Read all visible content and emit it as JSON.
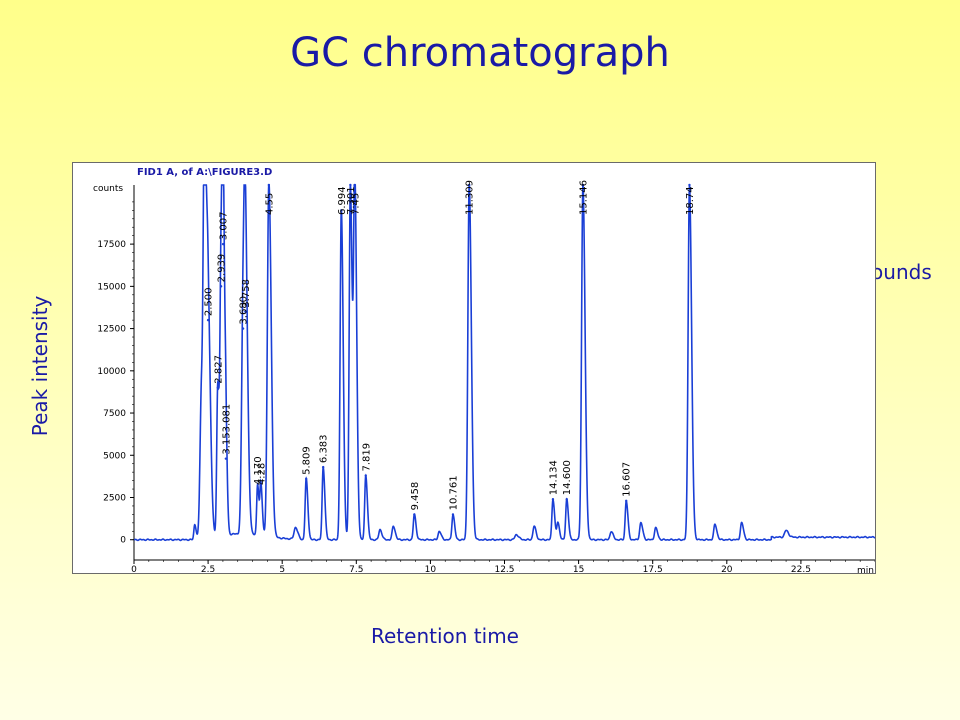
{
  "slide": {
    "title": "GC chromatograph",
    "y_axis_caption": "Peak intensity",
    "x_axis_caption": "Retention time",
    "annotation": "Separated compounds",
    "text_color": "#1a1aa6"
  },
  "chart_data": {
    "type": "line",
    "title": "FID1 A, of A:\\FIGURE3.D",
    "ylabel": "counts",
    "xunit": "min",
    "xlim": [
      0,
      25
    ],
    "ylim": [
      -1200,
      21000
    ],
    "xticks": [
      "0",
      "2.5",
      "5",
      "7.5",
      "10",
      "12.5",
      "15",
      "17.5",
      "20",
      "22.5"
    ],
    "yticks": [
      "0",
      "2500",
      "5000",
      "7500",
      "10000",
      "12500",
      "15000",
      "17500"
    ],
    "line_color": "#1a3fd6",
    "baseline": 0,
    "peaks": [
      {
        "rt": 2.05,
        "height": 900,
        "width": 0.03,
        "label": ""
      },
      {
        "rt": 2.28,
        "height": 9000,
        "width": 0.05,
        "label": ""
      },
      {
        "rt": 2.38,
        "height": 21000,
        "width": 0.04,
        "label": ""
      },
      {
        "rt": 2.5,
        "height": 13000,
        "width": 0.05,
        "label": "2.500"
      },
      {
        "rt": 2.827,
        "height": 9000,
        "width": 0.035,
        "label": "2.827"
      },
      {
        "rt": 2.939,
        "height": 15000,
        "width": 0.035,
        "label": "2.939"
      },
      {
        "rt": 3.007,
        "height": 17500,
        "width": 0.035,
        "label": "3.007"
      },
      {
        "rt": 3.1,
        "height": 4800,
        "width": 0.03,
        "label": "3.153.081"
      },
      {
        "rt": 3.68,
        "height": 12500,
        "width": 0.05,
        "label": "3.680"
      },
      {
        "rt": 3.758,
        "height": 13500,
        "width": 0.05,
        "label": "3.758"
      },
      {
        "rt": 4.17,
        "height": 3000,
        "width": 0.03,
        "label": "4.170"
      },
      {
        "rt": 4.28,
        "height": 3000,
        "width": 0.03,
        "label": "4.28"
      },
      {
        "rt": 4.55,
        "height": 21000,
        "width": 0.05,
        "label": "4.55"
      },
      {
        "rt": 5.45,
        "height": 700,
        "width": 0.05,
        "label": ""
      },
      {
        "rt": 5.809,
        "height": 3600,
        "width": 0.035,
        "label": "5.809"
      },
      {
        "rt": 6.383,
        "height": 4300,
        "width": 0.035,
        "label": "6.383"
      },
      {
        "rt": 6.994,
        "height": 19500,
        "width": 0.04,
        "label": "6.994"
      },
      {
        "rt": 7.3,
        "height": 21000,
        "width": 0.04,
        "label": "7.301"
      },
      {
        "rt": 7.45,
        "height": 21000,
        "width": 0.04,
        "label": "7.45"
      },
      {
        "rt": 7.819,
        "height": 3800,
        "width": 0.035,
        "label": "7.819"
      },
      {
        "rt": 8.3,
        "height": 600,
        "width": 0.04,
        "label": ""
      },
      {
        "rt": 8.75,
        "height": 800,
        "width": 0.04,
        "label": ""
      },
      {
        "rt": 9.458,
        "height": 1500,
        "width": 0.035,
        "label": "9.458"
      },
      {
        "rt": 10.3,
        "height": 500,
        "width": 0.04,
        "label": ""
      },
      {
        "rt": 10.761,
        "height": 1500,
        "width": 0.035,
        "label": "10.761"
      },
      {
        "rt": 11.309,
        "height": 21000,
        "width": 0.045,
        "label": "11.309"
      },
      {
        "rt": 12.9,
        "height": 300,
        "width": 0.05,
        "label": ""
      },
      {
        "rt": 13.5,
        "height": 800,
        "width": 0.04,
        "label": ""
      },
      {
        "rt": 14.134,
        "height": 2400,
        "width": 0.035,
        "label": "14.134"
      },
      {
        "rt": 14.3,
        "height": 1000,
        "width": 0.035,
        "label": ""
      },
      {
        "rt": 14.6,
        "height": 2400,
        "width": 0.035,
        "label": "14.600"
      },
      {
        "rt": 15.146,
        "height": 21000,
        "width": 0.045,
        "label": "15.146"
      },
      {
        "rt": 16.1,
        "height": 500,
        "width": 0.04,
        "label": ""
      },
      {
        "rt": 16.607,
        "height": 2300,
        "width": 0.035,
        "label": "16.607"
      },
      {
        "rt": 17.1,
        "height": 1000,
        "width": 0.04,
        "label": ""
      },
      {
        "rt": 17.6,
        "height": 700,
        "width": 0.04,
        "label": ""
      },
      {
        "rt": 18.74,
        "height": 21000,
        "width": 0.045,
        "label": "18.74"
      },
      {
        "rt": 19.6,
        "height": 900,
        "width": 0.04,
        "label": ""
      },
      {
        "rt": 20.5,
        "height": 1000,
        "width": 0.04,
        "label": ""
      },
      {
        "rt": 22,
        "height": 400,
        "width": 0.05,
        "label": ""
      }
    ]
  }
}
